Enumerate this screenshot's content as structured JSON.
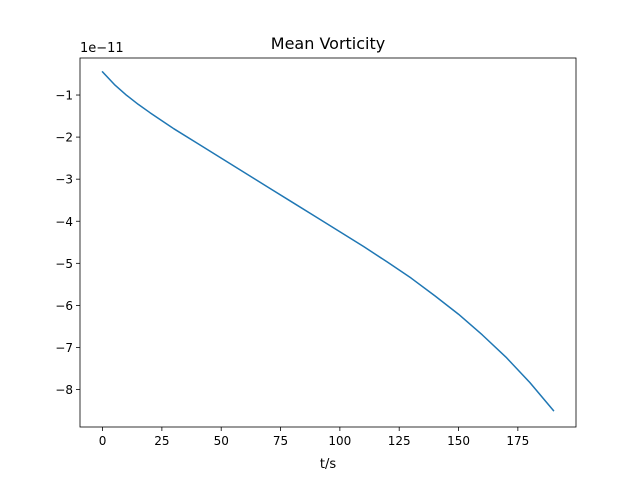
{
  "chart_data": {
    "type": "line",
    "title": "Mean Vorticity",
    "xlabel": "t/s",
    "ylabel": "",
    "y_offset_label": "1e−11",
    "xlim": [
      -9.5,
      199.5
    ],
    "ylim": [
      -8.89,
      -0.12
    ],
    "xticks": [
      0,
      25,
      50,
      75,
      100,
      125,
      150,
      175
    ],
    "yticks": [
      -1,
      -2,
      -3,
      -4,
      -5,
      -6,
      -7,
      -8
    ],
    "xtick_labels": [
      "0",
      "25",
      "50",
      "75",
      "100",
      "125",
      "150",
      "175"
    ],
    "ytick_labels": [
      "−1",
      "−2",
      "−3",
      "−4",
      "−5",
      "−6",
      "−7",
      "−8"
    ],
    "grid": false,
    "series": [
      {
        "color": "#1f77b4",
        "x": [
          0,
          5,
          10,
          15,
          20,
          30,
          40,
          50,
          60,
          70,
          80,
          90,
          100,
          110,
          120,
          130,
          140,
          150,
          160,
          170,
          180,
          190
        ],
        "y": [
          -0.45,
          -0.75,
          -1.0,
          -1.22,
          -1.42,
          -1.8,
          -2.15,
          -2.5,
          -2.85,
          -3.2,
          -3.55,
          -3.9,
          -4.25,
          -4.6,
          -4.97,
          -5.35,
          -5.77,
          -6.21,
          -6.7,
          -7.23,
          -7.83,
          -8.5
        ]
      }
    ]
  }
}
